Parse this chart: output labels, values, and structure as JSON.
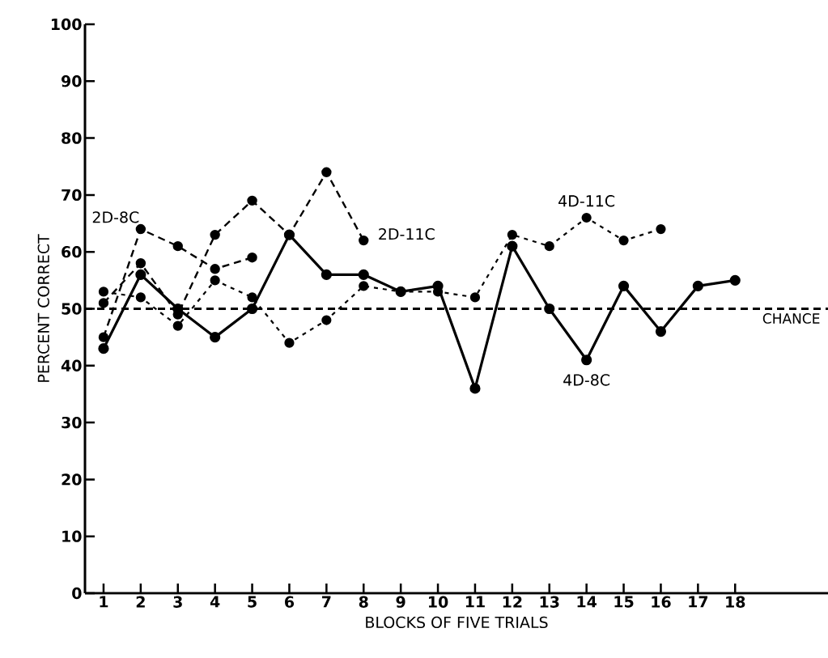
{
  "chart_data": {
    "type": "line",
    "xlabel": "BLOCKS OF FIVE TRIALS",
    "ylabel": "PERCENT CORRECT",
    "xlim": [
      0.5,
      20.5
    ],
    "xticks": [
      1,
      2,
      3,
      4,
      5,
      6,
      7,
      8,
      9,
      10,
      11,
      12,
      13,
      14,
      15,
      16,
      17,
      18
    ],
    "ylim": [
      0,
      100
    ],
    "yticks": [
      0,
      10,
      20,
      30,
      40,
      50,
      60,
      70,
      80,
      90,
      100
    ],
    "grid": false,
    "marker": "circle",
    "ref_lines": [
      {
        "axis": "y",
        "value": 50,
        "label": "CHANCE",
        "color": "#000000",
        "line_style": "dashed"
      }
    ],
    "series": [
      {
        "name": "2D-8C",
        "color": "#000000",
        "line_style": "dashed",
        "x": [
          1,
          2,
          3,
          4,
          5
        ],
        "values": [
          45,
          64,
          61,
          57,
          59
        ]
      },
      {
        "name": "2D-11C",
        "color": "#000000",
        "line_style": "dashed",
        "x": [
          1,
          2,
          3,
          4,
          5,
          6,
          7,
          8
        ],
        "values": [
          51,
          58,
          49,
          63,
          69,
          63,
          74,
          62
        ]
      },
      {
        "name": "4D-11C",
        "color": "#000000",
        "line_style": "dotted",
        "x": [
          1,
          2,
          3,
          4,
          5,
          6,
          7,
          8,
          9,
          10,
          11,
          12,
          13,
          14,
          15,
          16
        ],
        "values": [
          53,
          52,
          47,
          55,
          52,
          44,
          48,
          54,
          53,
          53,
          52,
          63,
          61,
          66,
          62,
          64
        ]
      },
      {
        "name": "4D-8C",
        "color": "#000000",
        "line_style": "solid",
        "x": [
          1,
          2,
          3,
          4,
          5,
          6,
          7,
          8,
          9,
          10,
          11,
          12,
          13,
          14,
          15,
          16,
          17,
          18
        ],
        "values": [
          43,
          56,
          50,
          45,
          50,
          63,
          56,
          56,
          53,
          54,
          36,
          61,
          50,
          41,
          54,
          46,
          54,
          55
        ]
      }
    ]
  }
}
